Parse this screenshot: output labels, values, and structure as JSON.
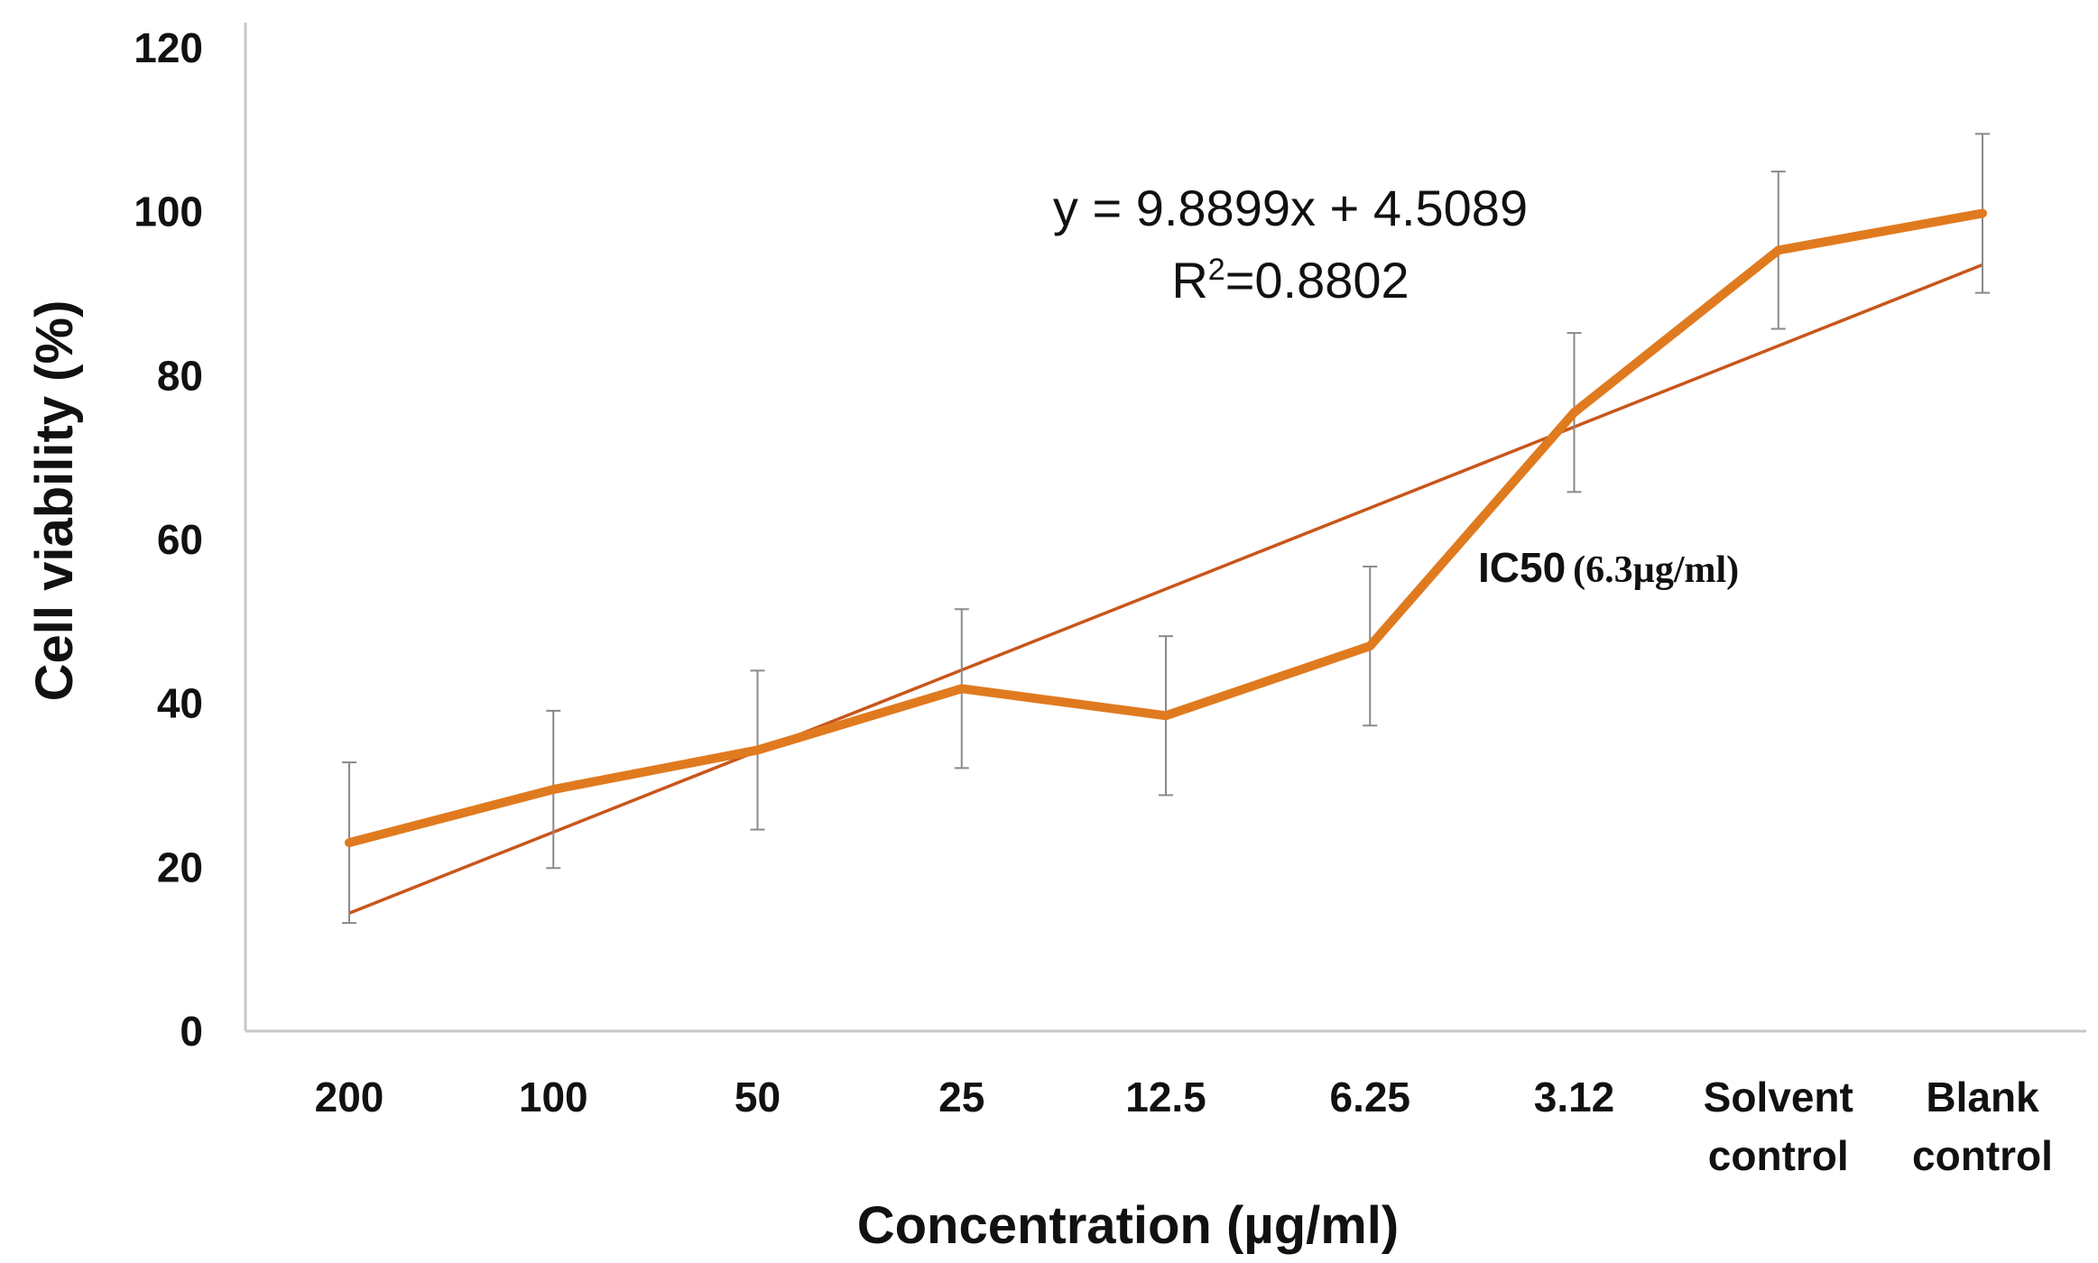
{
  "chart_data": {
    "type": "line",
    "title": "",
    "xlabel": "Concentration (µg/ml)",
    "ylabel": "Cell viability (%)",
    "ylim": [
      0,
      120
    ],
    "yticks": [
      0,
      20,
      40,
      60,
      80,
      100,
      120
    ],
    "categories": [
      [
        "200"
      ],
      [
        "100"
      ],
      [
        "50"
      ],
      [
        "25"
      ],
      [
        "12.5"
      ],
      [
        "6.25"
      ],
      [
        "3.12"
      ],
      [
        "Solvent",
        "control"
      ],
      [
        "Blank",
        "control"
      ]
    ],
    "series": [
      {
        "name": "Cell viability",
        "color": "#E07A1F",
        "values": [
          23,
          29.5,
          34.3,
          41.8,
          38.5,
          47,
          75.5,
          95.3,
          99.8
        ],
        "error": [
          9.8,
          9.6,
          9.7,
          9.7,
          9.7,
          9.7,
          9.7,
          9.6,
          9.7
        ]
      },
      {
        "name": "Linear trendline",
        "color": "#C8561A",
        "trend": {
          "slope": 9.8899,
          "intercept": 4.5089
        }
      }
    ],
    "annotations": {
      "equation": "y = 9.8899x + 4.5089",
      "r2_prefix": "R",
      "r2_sup": "2",
      "r2_value": "=0.8802",
      "ic50_label": "IC50",
      "ic50_value": "(6.3µg/ml)"
    }
  }
}
